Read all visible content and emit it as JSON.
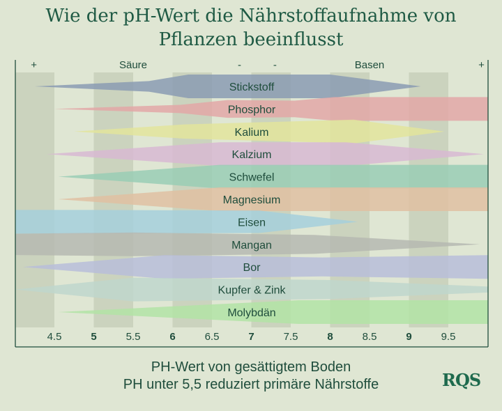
{
  "title_line1": "Wie der pH-Wert die Nährstoffaufnahme von",
  "title_line2": "Pflanzen beeinflusst",
  "caption_line1": "PH-Wert von gesättigtem Boden",
  "caption_line2": "PH unter 5,5 reduziert primäre Nährstoffe",
  "logo_text": "RQS",
  "colors": {
    "background": "#dfe6d3",
    "title": "#1f5a44",
    "stripe": "#b9c3ad",
    "axis": "#1f4d3c"
  },
  "chart_data": {
    "type": "area",
    "xlim": [
      4.0,
      10.0
    ],
    "x_ticks": [
      {
        "value": 4.5,
        "label": "4.5",
        "bold": false
      },
      {
        "value": 5,
        "label": "5",
        "bold": true
      },
      {
        "value": 5.5,
        "label": "5.5",
        "bold": false
      },
      {
        "value": 6,
        "label": "6",
        "bold": true
      },
      {
        "value": 6.5,
        "label": "6.5",
        "bold": false
      },
      {
        "value": 7,
        "label": "7",
        "bold": true
      },
      {
        "value": 7.5,
        "label": "7.5",
        "bold": false
      },
      {
        "value": 8,
        "label": "8",
        "bold": true
      },
      {
        "value": 8.5,
        "label": "8.5",
        "bold": false
      },
      {
        "value": 9,
        "label": "9",
        "bold": true
      },
      {
        "value": 9.5,
        "label": "9.5",
        "bold": false
      }
    ],
    "shaded_ranges": [
      [
        4.0,
        4.5
      ],
      [
        5.0,
        5.5
      ],
      [
        6.0,
        6.5
      ],
      [
        7.0,
        7.5
      ],
      [
        8.0,
        8.5
      ],
      [
        9.0,
        9.5
      ]
    ],
    "top_labels": [
      {
        "text": "+",
        "at": 4.24
      },
      {
        "text": "Säure",
        "at": 5.5
      },
      {
        "text": "-",
        "at": 6.85
      },
      {
        "text": "-",
        "at": 7.3
      },
      {
        "text": "Basen",
        "at": 8.5
      },
      {
        "text": "+",
        "at": 9.92
      }
    ],
    "series": [
      {
        "name": "Stickstoff",
        "color": "#8b9bb3",
        "x": [
          4.25,
          5.7,
          6.2,
          8.0,
          9.15
        ],
        "thickness": [
          0,
          0.45,
          1,
          1,
          0
        ]
      },
      {
        "name": "Phosphor",
        "color": "#e3a7a7",
        "x": [
          4.5,
          6.1,
          6.7,
          7.55,
          8.05,
          10.0
        ],
        "thickness": [
          0,
          0.35,
          0.75,
          0.7,
          1,
          1
        ]
      },
      {
        "name": "Kalium",
        "color": "#e3e49c",
        "x": [
          4.75,
          6.15,
          8.3,
          9.45
        ],
        "thickness": [
          0,
          0.6,
          1,
          0
        ]
      },
      {
        "name": "Kalzium",
        "color": "#d8b9d2",
        "x": [
          4.4,
          6.6,
          8.2,
          9.95
        ],
        "thickness": [
          0,
          1,
          1,
          0
        ]
      },
      {
        "name": "Schwefel",
        "color": "#9acdb5",
        "x": [
          4.55,
          6.6,
          10.0
        ],
        "thickness": [
          0,
          1,
          1
        ]
      },
      {
        "name": "Magnesium",
        "color": "#e1bfa2",
        "x": [
          4.55,
          6.6,
          10.0
        ],
        "thickness": [
          0,
          1,
          1
        ]
      },
      {
        "name": "Eisen",
        "color": "#a6cfdc",
        "x": [
          4.0,
          5.0,
          7.1,
          8.35
        ],
        "thickness": [
          1,
          1,
          0.95,
          0
        ]
      },
      {
        "name": "Mangan",
        "color": "#b6b9b2",
        "x": [
          4.0,
          5.5,
          7.8,
          9.9
        ],
        "thickness": [
          0.9,
          1,
          0.8,
          0
        ]
      },
      {
        "name": "Bor",
        "color": "#b8bdd9",
        "x": [
          4.1,
          5.9,
          7.9,
          10.0
        ],
        "thickness": [
          0,
          1,
          0.8,
          1
        ]
      },
      {
        "name": "Kupfer & Zink",
        "color": "#bfd6cc",
        "x": [
          4.0,
          5.5,
          8.0,
          10.0
        ],
        "thickness": [
          0,
          1,
          0.8,
          0.25
        ]
      },
      {
        "name": "Molybdän",
        "color": "#b3e3a6",
        "x": [
          4.55,
          5.9,
          7.6,
          10.0
        ],
        "thickness": [
          0,
          0.45,
          1,
          1
        ]
      }
    ]
  }
}
